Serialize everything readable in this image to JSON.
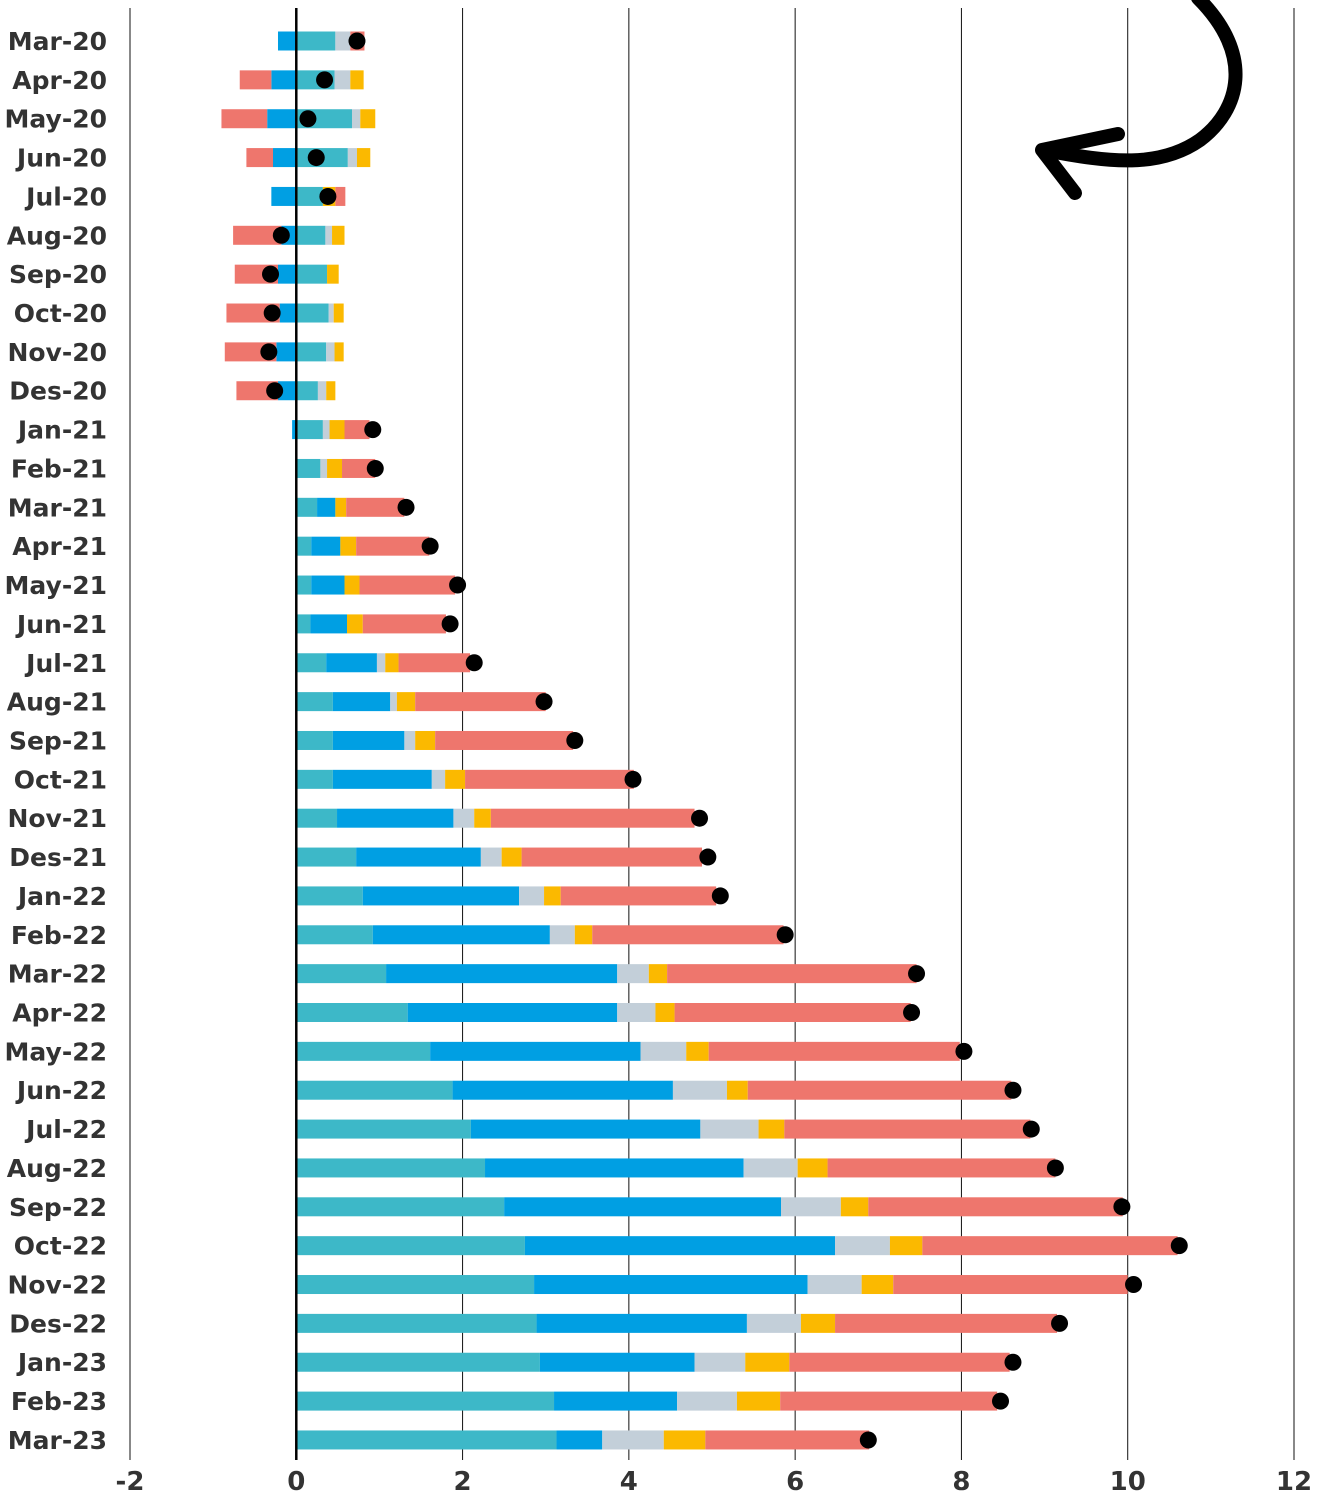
{
  "chart_data": {
    "type": "bar",
    "orientation": "horizontal",
    "stacked": true,
    "title": "",
    "xlabel": "",
    "ylabel": "",
    "xlim": [
      -2,
      12
    ],
    "x_ticks": [
      "-2",
      "0",
      "2",
      "4",
      "6",
      "8",
      "10",
      "12"
    ],
    "grid": "vertical",
    "legend": "none",
    "categories": [
      "Mar-20",
      "Apr-20",
      "May-20",
      "Jun-20",
      "Jul-20",
      "Aug-20",
      "Sep-20",
      "Oct-20",
      "Nov-20",
      "Des-20",
      "Jan-21",
      "Feb-21",
      "Mar-21",
      "Apr-21",
      "May-21",
      "Jun-21",
      "Jul-21",
      "Aug-21",
      "Sep-21",
      "Oct-21",
      "Nov-21",
      "Des-21",
      "Jan-22",
      "Feb-22",
      "Mar-22",
      "Apr-22",
      "May-22",
      "Jun-22",
      "Jul-22",
      "Aug-22",
      "Sep-22",
      "Oct-22",
      "Nov-22",
      "Des-22",
      "Jan-23",
      "Feb-23",
      "Mar-23"
    ],
    "series": [
      {
        "color": "#3db8c8",
        "values": [
          0.47,
          0.46,
          0.67,
          0.62,
          0.32,
          0.35,
          0.37,
          0.39,
          0.36,
          0.26,
          0.32,
          0.29,
          0.25,
          0.18,
          0.18,
          0.17,
          0.36,
          0.44,
          0.44,
          0.44,
          0.49,
          0.72,
          0.8,
          0.92,
          1.08,
          1.34,
          1.61,
          1.88,
          2.1,
          2.27,
          2.5,
          2.75,
          2.86,
          2.89,
          2.93,
          3.1,
          3.13
        ]
      },
      {
        "color": "#009fe3",
        "values": [
          -0.22,
          -0.3,
          -0.35,
          -0.28,
          -0.3,
          -0.18,
          -0.22,
          -0.2,
          -0.24,
          -0.22,
          -0.05,
          0.0,
          0.22,
          0.35,
          0.4,
          0.44,
          0.61,
          0.69,
          0.86,
          1.19,
          1.4,
          1.5,
          1.88,
          2.13,
          2.78,
          2.52,
          2.53,
          2.65,
          2.76,
          3.11,
          3.33,
          3.73,
          3.29,
          2.53,
          1.86,
          1.48,
          0.55
        ]
      },
      {
        "color": "#c3cfd9",
        "values": [
          0.18,
          0.19,
          0.1,
          0.11,
          0.0,
          0.08,
          0.0,
          0.06,
          0.1,
          0.1,
          0.08,
          0.08,
          0.0,
          0.0,
          0.0,
          0.0,
          0.1,
          0.08,
          0.13,
          0.16,
          0.25,
          0.25,
          0.3,
          0.3,
          0.38,
          0.46,
          0.55,
          0.65,
          0.7,
          0.65,
          0.72,
          0.66,
          0.65,
          0.65,
          0.61,
          0.72,
          0.74
        ]
      },
      {
        "color": "#fbb900",
        "values": [
          0.0,
          0.16,
          0.18,
          0.16,
          0.15,
          0.15,
          0.14,
          0.12,
          0.11,
          0.11,
          0.18,
          0.18,
          0.13,
          0.19,
          0.18,
          0.19,
          0.16,
          0.22,
          0.24,
          0.24,
          0.2,
          0.24,
          0.2,
          0.21,
          0.22,
          0.23,
          0.27,
          0.25,
          0.31,
          0.36,
          0.33,
          0.39,
          0.38,
          0.41,
          0.53,
          0.52,
          0.5
        ]
      },
      {
        "color": "#ee766d",
        "values": [
          0.17,
          -0.38,
          -0.55,
          -0.32,
          0.12,
          -0.58,
          -0.52,
          -0.64,
          -0.62,
          -0.5,
          0.3,
          0.4,
          0.7,
          0.88,
          1.15,
          1.0,
          0.86,
          1.57,
          1.66,
          2.03,
          2.45,
          2.17,
          1.87,
          2.3,
          3.0,
          2.84,
          3.02,
          3.17,
          2.96,
          2.74,
          3.06,
          3.07,
          2.82,
          2.67,
          2.65,
          2.61,
          1.97
        ]
      }
    ],
    "markers": {
      "color": "#000000",
      "values": [
        0.73,
        0.34,
        0.14,
        0.24,
        0.38,
        -0.18,
        -0.31,
        -0.29,
        -0.33,
        -0.26,
        0.92,
        0.95,
        1.32,
        1.61,
        1.94,
        1.85,
        2.14,
        2.98,
        3.35,
        4.05,
        4.85,
        4.95,
        5.1,
        5.88,
        7.46,
        7.4,
        8.03,
        8.62,
        8.84,
        9.13,
        9.93,
        10.62,
        10.07,
        9.18,
        8.62,
        8.47,
        6.88
      ]
    },
    "annotation": {
      "type": "curved-arrow",
      "color": "#000000"
    }
  }
}
